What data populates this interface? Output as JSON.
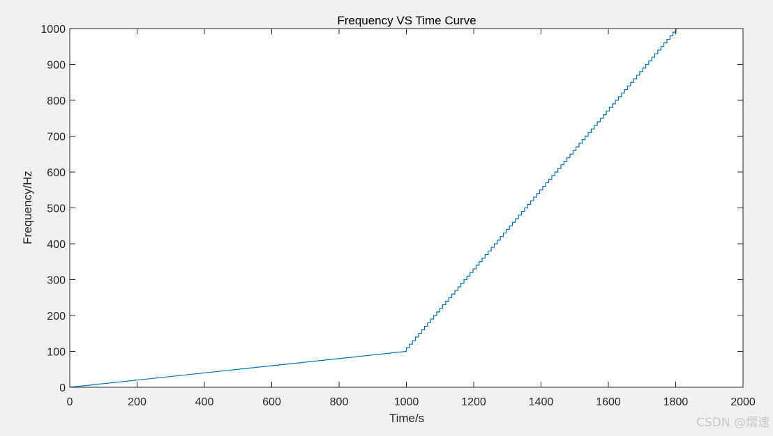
{
  "chart_data": {
    "type": "line",
    "title": "Frequency VS Time Curve",
    "xlabel": "Time/s",
    "ylabel": "Frequency/Hz",
    "xlim": [
      0,
      2000
    ],
    "ylim": [
      0,
      1000
    ],
    "xticks": [
      0,
      200,
      400,
      600,
      800,
      1000,
      1200,
      1400,
      1600,
      1800,
      2000
    ],
    "yticks": [
      0,
      100,
      200,
      300,
      400,
      500,
      600,
      700,
      800,
      900,
      1000
    ],
    "grid": false,
    "box": true,
    "series": [
      {
        "color": "#0072bd",
        "segments": [
          {
            "shape": "linear",
            "x": [
              0,
              1000
            ],
            "y": [
              0,
              100
            ]
          },
          {
            "shape": "staircase",
            "x_start": 1000,
            "x_end": 1900,
            "y_start": 100,
            "y_end": 1000,
            "step_y": 10,
            "step_x": 9
          }
        ]
      }
    ]
  },
  "watermark": "CSDN @熠速"
}
